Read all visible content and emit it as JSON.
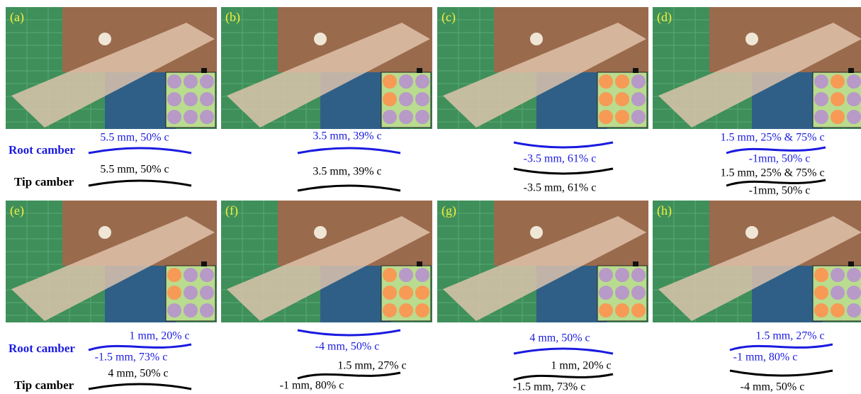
{
  "row_labels": {
    "root": "Root camber",
    "tip": "Tip camber"
  },
  "panels": [
    {
      "label": "(a)",
      "root": [
        "5.5 mm, 50% c"
      ],
      "tip": [
        "5.5 mm, 50% c"
      ],
      "inset": [
        "#b79ac7",
        "#b79ac7",
        "#b79ac7",
        "#b79ac7",
        "#b79ac7",
        "#b79ac7",
        "#b79ac7",
        "#b79ac7",
        "#b79ac7"
      ]
    },
    {
      "label": "(b)",
      "root": [
        "3.5 mm, 39% c"
      ],
      "tip": [
        "3.5 mm, 39% c"
      ],
      "inset": [
        "#f79a55",
        "#b79ac7",
        "#b79ac7",
        "#f79a55",
        "#b79ac7",
        "#b79ac7",
        "#b79ac7",
        "#b79ac7",
        "#b79ac7"
      ]
    },
    {
      "label": "(c)",
      "root": [
        "-3.5 mm, 61% c"
      ],
      "tip": [
        "-3.5 mm, 61% c"
      ],
      "inset": [
        "#f79a55",
        "#f79a55",
        "#b79ac7",
        "#f79a55",
        "#f79a55",
        "#b79ac7",
        "#f79a55",
        "#f79a55",
        "#b79ac7"
      ]
    },
    {
      "label": "(d)",
      "root": [
        "1.5 mm, 25% & 75% c",
        "-1mm, 50% c"
      ],
      "tip": [
        "1.5 mm, 25% & 75% c",
        "-1mm, 50% c"
      ],
      "inset": [
        "#b79ac7",
        "#f79a55",
        "#b79ac7",
        "#b79ac7",
        "#f79a55",
        "#b79ac7",
        "#b79ac7",
        "#f79a55",
        "#b79ac7"
      ]
    },
    {
      "label": "(e)",
      "root": [
        "1 mm, 20% c",
        "-1.5 mm, 73% c"
      ],
      "tip": [
        "4 mm, 50% c"
      ],
      "inset": [
        "#f79a55",
        "#b79ac7",
        "#b79ac7",
        "#f79a55",
        "#b79ac7",
        "#b79ac7",
        "#b79ac7",
        "#b79ac7",
        "#b79ac7"
      ]
    },
    {
      "label": "(f)",
      "root": [
        "-4 mm, 50% c"
      ],
      "tip": [
        "1.5 mm, 27% c",
        "-1 mm, 80% c"
      ],
      "inset": [
        "#f79a55",
        "#b79ac7",
        "#b79ac7",
        "#f79a55",
        "#f79a55",
        "#f79a55",
        "#f79a55",
        "#f79a55",
        "#f79a55"
      ]
    },
    {
      "label": "(g)",
      "root": [
        "4 mm, 50% c"
      ],
      "tip": [
        "1 mm, 20% c",
        "-1.5 mm, 73% c"
      ],
      "inset": [
        "#b79ac7",
        "#b79ac7",
        "#b79ac7",
        "#b79ac7",
        "#b79ac7",
        "#b79ac7",
        "#f79a55",
        "#f79a55",
        "#f79a55"
      ]
    },
    {
      "label": "(h)",
      "root": [
        "1.5 mm, 27% c",
        "-1 mm, 80% c"
      ],
      "tip": [
        "-4 mm, 50% c"
      ],
      "inset": [
        "#f79a55",
        "#b79ac7",
        "#b79ac7",
        "#f79a55",
        "#b79ac7",
        "#b79ac7",
        "#f79a55",
        "#f79a55",
        "#b79ac7"
      ]
    }
  ]
}
